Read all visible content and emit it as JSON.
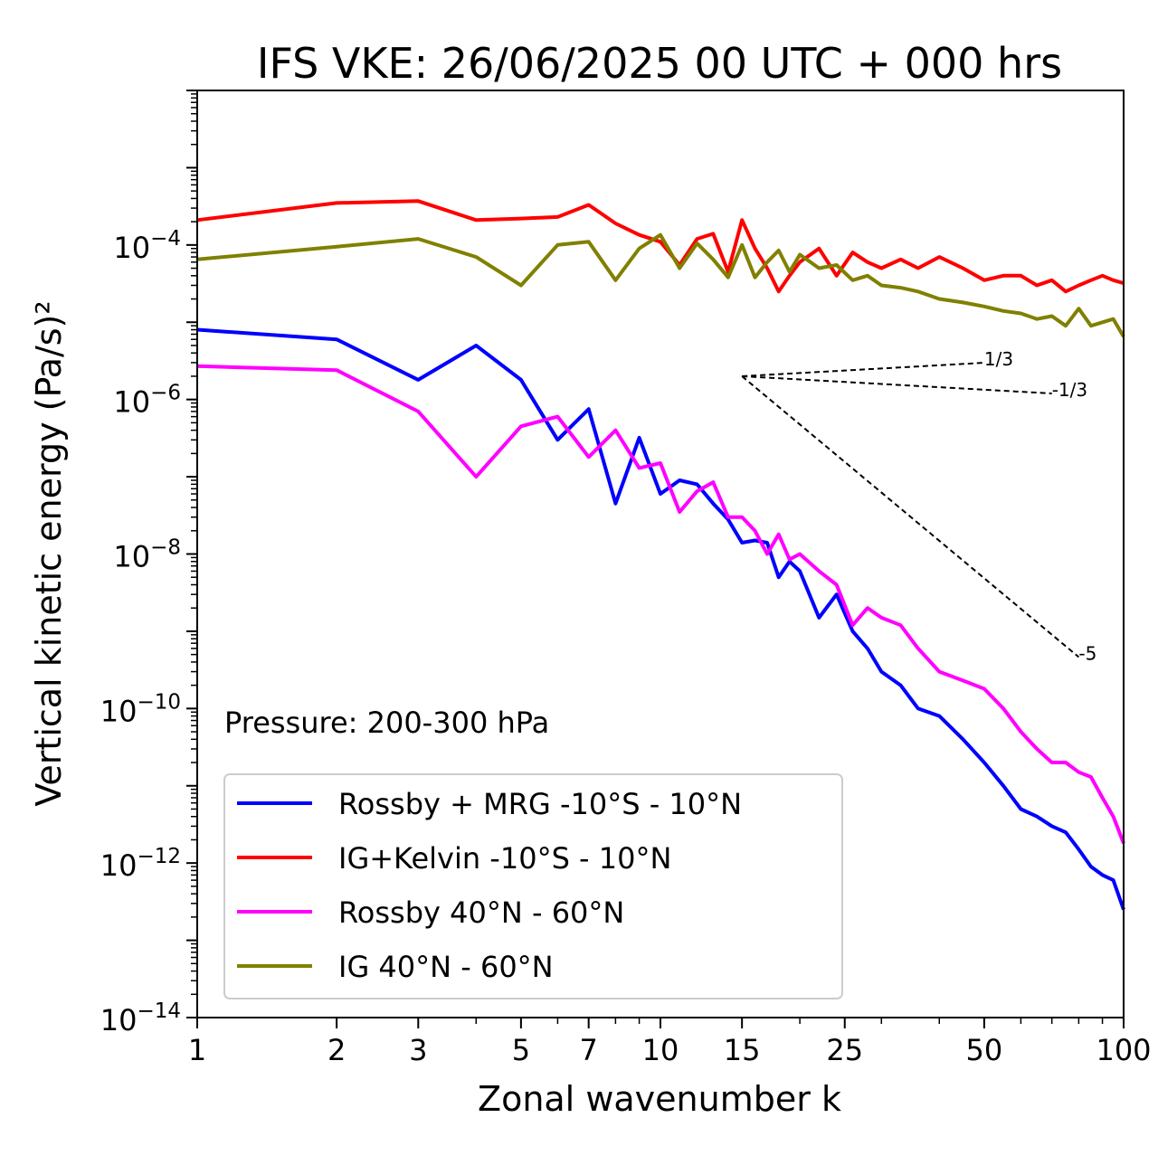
{
  "chart_data": {
    "type": "line",
    "title": "IFS VKE: 26/06/2025 00 UTC + 000 hrs",
    "xlabel": "Zonal wavenumber k",
    "ylabel": "Vertical kinetic energy (Pa/s)²",
    "xscale": "log",
    "yscale": "log",
    "xlim": [
      1,
      100
    ],
    "ylim": [
      1e-14,
      0.01
    ],
    "xticks": [
      1,
      2,
      3,
      5,
      7,
      10,
      15,
      25,
      50,
      100
    ],
    "xtick_labels": [
      "1",
      "2",
      "3",
      "5",
      "7",
      "10",
      "15",
      "25",
      "50",
      "100"
    ],
    "ytick_bases": [
      "10",
      "10",
      "10",
      "10",
      "10",
      "10"
    ],
    "ytick_exponents": [
      "−4",
      "−6",
      "−8",
      "−10",
      "−12",
      "−14"
    ],
    "ytick_values": [
      0.0001,
      1e-06,
      1e-08,
      1e-10,
      1e-12,
      1e-14
    ],
    "annotation": "Pressure: 200-300 hPa",
    "legend_position": "lower-left",
    "series": [
      {
        "name": "Rossby + MRG -10°S - 10°N",
        "color": "#0000ff",
        "x": [
          1,
          2,
          3,
          4,
          5,
          6,
          7,
          8,
          9,
          10,
          11,
          12,
          13,
          14,
          15,
          16,
          17,
          18,
          19,
          20,
          22,
          24,
          26,
          28,
          30,
          33,
          36,
          40,
          45,
          50,
          55,
          60,
          65,
          70,
          75,
          80,
          85,
          90,
          95,
          100
        ],
        "y": [
          8e-06,
          6e-06,
          1.8e-06,
          5e-06,
          1.8e-06,
          3e-07,
          7.5e-07,
          4.5e-08,
          3.2e-07,
          6e-08,
          9e-08,
          8e-08,
          4.5e-08,
          2.8e-08,
          1.4e-08,
          1.5e-08,
          1.4e-08,
          5e-09,
          8e-09,
          6e-09,
          1.5e-09,
          3e-09,
          1e-09,
          6e-10,
          3e-10,
          2e-10,
          1e-10,
          8e-11,
          4e-11,
          2e-11,
          1e-11,
          5e-12,
          4e-12,
          3e-12,
          2.5e-12,
          1.5e-12,
          9e-13,
          7e-13,
          6e-13,
          2.5e-13
        ]
      },
      {
        "name": "IG+Kelvin -10°S - 10°N",
        "color": "#ff0000",
        "x": [
          1,
          2,
          3,
          4,
          5,
          6,
          7,
          8,
          9,
          10,
          11,
          12,
          13,
          14,
          15,
          16,
          17,
          18,
          19,
          20,
          22,
          24,
          26,
          28,
          30,
          33,
          36,
          40,
          45,
          50,
          55,
          60,
          65,
          70,
          75,
          80,
          85,
          90,
          95,
          100
        ],
        "y": [
          0.00021,
          0.00035,
          0.00037,
          0.00021,
          0.00022,
          0.00023,
          0.00033,
          0.00019,
          0.000135,
          0.00011,
          5.5e-05,
          0.00012,
          0.00014,
          4.5e-05,
          0.00021,
          9e-05,
          5e-05,
          2.5e-05,
          4e-05,
          6e-05,
          9e-05,
          4e-05,
          8e-05,
          6e-05,
          5e-05,
          6.5e-05,
          5e-05,
          7e-05,
          5e-05,
          3.5e-05,
          4e-05,
          4e-05,
          3e-05,
          3.5e-05,
          2.5e-05,
          3e-05,
          3.5e-05,
          4e-05,
          3.5e-05,
          3.2e-05
        ]
      },
      {
        "name": "Rossby 40°N - 60°N",
        "color": "#ff00ff",
        "x": [
          1,
          2,
          3,
          4,
          5,
          6,
          7,
          8,
          9,
          10,
          11,
          12,
          13,
          14,
          15,
          16,
          17,
          18,
          19,
          20,
          22,
          24,
          26,
          28,
          30,
          33,
          36,
          40,
          45,
          50,
          55,
          60,
          65,
          70,
          75,
          80,
          85,
          90,
          95,
          100
        ],
        "y": [
          2.7e-06,
          2.4e-06,
          7e-07,
          1e-07,
          4.5e-07,
          6e-07,
          1.8e-07,
          4e-07,
          1.3e-07,
          1.5e-07,
          3.5e-08,
          6.5e-08,
          8.5e-08,
          3e-08,
          3e-08,
          2e-08,
          1e-08,
          1.8e-08,
          8.5e-09,
          1e-08,
          6e-09,
          4e-09,
          1.2e-09,
          2e-09,
          1.5e-09,
          1.2e-09,
          6e-10,
          3e-10,
          2.3e-10,
          1.8e-10,
          1e-10,
          5e-11,
          3e-11,
          2e-11,
          2e-11,
          1.5e-11,
          1.3e-11,
          7e-12,
          4e-12,
          1.8e-12
        ]
      },
      {
        "name": "IG 40°N - 60°N",
        "color": "#808000",
        "x": [
          1,
          2,
          3,
          4,
          5,
          6,
          7,
          8,
          9,
          10,
          11,
          12,
          13,
          14,
          15,
          16,
          17,
          18,
          19,
          20,
          22,
          24,
          26,
          28,
          30,
          33,
          36,
          40,
          45,
          50,
          55,
          60,
          65,
          70,
          75,
          80,
          85,
          90,
          95,
          100
        ],
        "y": [
          6.5e-05,
          9.5e-05,
          0.00012,
          7e-05,
          3e-05,
          0.0001,
          0.00011,
          3.5e-05,
          9e-05,
          0.000135,
          5e-05,
          0.000105,
          6.5e-05,
          3.8e-05,
          0.0001,
          3.8e-05,
          6e-05,
          8.5e-05,
          4.5e-05,
          7.5e-05,
          5e-05,
          5.5e-05,
          3.5e-05,
          4e-05,
          3e-05,
          2.8e-05,
          2.5e-05,
          2e-05,
          1.8e-05,
          1.6e-05,
          1.4e-05,
          1.3e-05,
          1.1e-05,
          1.2e-05,
          9e-06,
          1.5e-05,
          9e-06,
          1e-05,
          1.1e-05,
          6.5e-06
        ]
      }
    ],
    "reference_lines": [
      {
        "label": "1/3",
        "slope": 0.3333,
        "x0": 15,
        "y0": 2e-06,
        "x1": 50
      },
      {
        "label": "-1/3",
        "slope": -0.3333,
        "x0": 15,
        "y0": 2e-06,
        "x1": 70
      },
      {
        "label": "-5",
        "slope": -5,
        "x0": 15,
        "y0": 2e-06,
        "x1": 80
      }
    ]
  }
}
